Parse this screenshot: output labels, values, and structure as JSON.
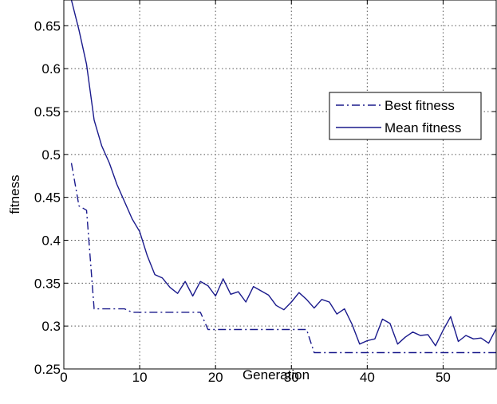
{
  "chart_data": {
    "type": "line",
    "title": "",
    "xlabel": "Generation",
    "ylabel": "fitness",
    "xlim": [
      0,
      57
    ],
    "ylim": [
      0.25,
      0.68
    ],
    "xticks": [
      0,
      10,
      20,
      30,
      40,
      50
    ],
    "yticks": [
      0.25,
      0.3,
      0.35,
      0.4,
      0.45,
      0.5,
      0.55,
      0.6,
      0.65
    ],
    "xtick_labels": [
      "0",
      "10",
      "20",
      "30",
      "40",
      "50"
    ],
    "ytick_labels": [
      "0.25",
      "0.3",
      "0.35",
      "0.4",
      "0.45",
      "0.5",
      "0.55",
      "0.6",
      "0.65"
    ],
    "grid": true,
    "legend_position": "upper-right",
    "series": [
      {
        "name": "Best fitness",
        "color": "#1a1a8c",
        "style": "dash-dot",
        "x": [
          1,
          2,
          3,
          4,
          5,
          6,
          7,
          8,
          9,
          10,
          11,
          12,
          13,
          14,
          15,
          16,
          17,
          18,
          19,
          20,
          21,
          22,
          23,
          24,
          25,
          26,
          27,
          28,
          29,
          30,
          31,
          32,
          33,
          34,
          35,
          36,
          37,
          38,
          39,
          40,
          41,
          42,
          43,
          44,
          45,
          46,
          47,
          48,
          49,
          50,
          51,
          52,
          53,
          54,
          55,
          56,
          57
        ],
        "y": [
          0.49,
          0.44,
          0.435,
          0.32,
          0.32,
          0.32,
          0.32,
          0.32,
          0.316,
          0.316,
          0.316,
          0.316,
          0.316,
          0.316,
          0.316,
          0.316,
          0.316,
          0.316,
          0.296,
          0.296,
          0.296,
          0.296,
          0.296,
          0.296,
          0.296,
          0.296,
          0.296,
          0.296,
          0.296,
          0.296,
          0.296,
          0.296,
          0.269,
          0.269,
          0.269,
          0.269,
          0.269,
          0.269,
          0.269,
          0.269,
          0.269,
          0.269,
          0.269,
          0.269,
          0.269,
          0.269,
          0.269,
          0.269,
          0.269,
          0.269,
          0.269,
          0.269,
          0.269,
          0.269,
          0.269,
          0.269,
          0.269
        ]
      },
      {
        "name": "Mean fitness",
        "color": "#1a1a8c",
        "style": "solid",
        "x": [
          1,
          2,
          3,
          4,
          5,
          6,
          7,
          8,
          9,
          10,
          11,
          12,
          13,
          14,
          15,
          16,
          17,
          18,
          19,
          20,
          21,
          22,
          23,
          24,
          25,
          26,
          27,
          28,
          29,
          30,
          31,
          32,
          33,
          34,
          35,
          36,
          37,
          38,
          39,
          40,
          41,
          42,
          43,
          44,
          45,
          46,
          47,
          48,
          49,
          50,
          51,
          52,
          53,
          54,
          55,
          56,
          57
        ],
        "y": [
          0.68,
          0.645,
          0.605,
          0.54,
          0.51,
          0.49,
          0.465,
          0.445,
          0.425,
          0.41,
          0.382,
          0.36,
          0.356,
          0.345,
          0.338,
          0.352,
          0.335,
          0.352,
          0.347,
          0.335,
          0.355,
          0.337,
          0.34,
          0.328,
          0.346,
          0.341,
          0.336,
          0.324,
          0.319,
          0.328,
          0.339,
          0.331,
          0.321,
          0.331,
          0.328,
          0.314,
          0.32,
          0.302,
          0.279,
          0.283,
          0.285,
          0.308,
          0.303,
          0.279,
          0.287,
          0.293,
          0.289,
          0.29,
          0.277,
          0.295,
          0.311,
          0.282,
          0.289,
          0.285,
          0.286,
          0.28,
          0.297
        ]
      }
    ]
  }
}
